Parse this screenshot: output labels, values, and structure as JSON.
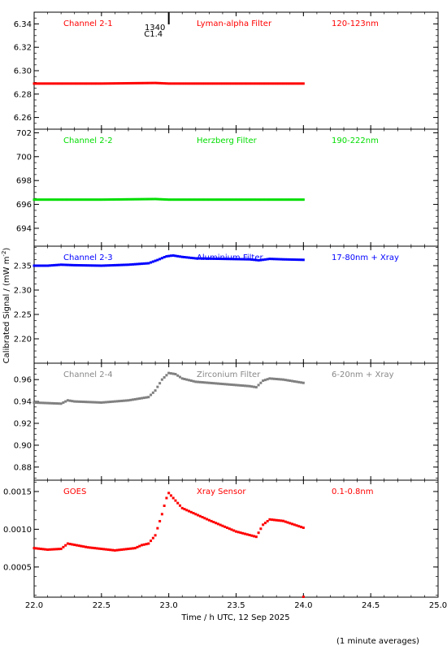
{
  "chart_data": {
    "type": "scatter",
    "xlabel": "Time / h UTC, 12 Sep 2025",
    "ylabel": "Calibrated Signal / (mW m",
    "ylabel_sup": "-2",
    "ylabel_close": ")",
    "footnote": "(1 minute averages)",
    "x_range": [
      22.0,
      25.0
    ],
    "x_ticks": [
      "22.0",
      "22.5",
      "23.0",
      "23.5",
      "24.0",
      "24.5",
      "25.0"
    ],
    "x_tick_values": [
      22.0,
      22.5,
      23.0,
      23.5,
      24.0,
      24.5,
      25.0
    ],
    "flare_marker": {
      "x": 23.0,
      "time": "1340",
      "class": "C1.4"
    },
    "panels": [
      {
        "channel": "Channel 2-1",
        "filter": "Lyman-alpha Filter",
        "band": "120-123nm",
        "color": "#ff0000",
        "ylim": [
          6.25,
          6.35
        ],
        "y_ticks": [
          "6.26",
          "6.28",
          "6.30",
          "6.32",
          "6.34"
        ],
        "y_tick_values": [
          6.26,
          6.28,
          6.3,
          6.32,
          6.34
        ],
        "points": [
          [
            22.0,
            6.289
          ],
          [
            22.5,
            6.289
          ],
          [
            22.9,
            6.2895
          ],
          [
            23.0,
            6.289
          ],
          [
            23.5,
            6.289
          ],
          [
            24.0,
            6.289
          ]
        ]
      },
      {
        "channel": "Channel 2-2",
        "filter": "Herzberg Filter",
        "band": "190-222nm",
        "color": "#00dd00",
        "ylim": [
          692.5,
          702.3
        ],
        "y_ticks": [
          "694",
          "696",
          "698",
          "700",
          "702"
        ],
        "y_tick_values": [
          694,
          696,
          698,
          700,
          702
        ],
        "points": [
          [
            22.0,
            696.4
          ],
          [
            22.5,
            696.4
          ],
          [
            22.9,
            696.45
          ],
          [
            23.0,
            696.4
          ],
          [
            23.5,
            696.4
          ],
          [
            24.0,
            696.4
          ]
        ]
      },
      {
        "channel": "Channel 2-3",
        "filter": "Aluminium Filter",
        "band": "17-80nm + Xray",
        "color": "#0000ff",
        "ylim": [
          2.15,
          2.39
        ],
        "y_ticks": [
          "2.20",
          "2.25",
          "2.30",
          "2.35"
        ],
        "y_tick_values": [
          2.2,
          2.25,
          2.3,
          2.35
        ],
        "points": [
          [
            22.0,
            2.35
          ],
          [
            22.1,
            2.35
          ],
          [
            22.2,
            2.352
          ],
          [
            22.3,
            2.351
          ],
          [
            22.5,
            2.35
          ],
          [
            22.7,
            2.352
          ],
          [
            22.85,
            2.355
          ],
          [
            22.92,
            2.362
          ],
          [
            22.98,
            2.369
          ],
          [
            23.03,
            2.371
          ],
          [
            23.1,
            2.368
          ],
          [
            23.2,
            2.365
          ],
          [
            23.4,
            2.364
          ],
          [
            23.6,
            2.363
          ],
          [
            23.67,
            2.361
          ],
          [
            23.75,
            2.364
          ],
          [
            23.85,
            2.363
          ],
          [
            24.0,
            2.362
          ]
        ]
      },
      {
        "channel": "Channel 2-4",
        "filter": "Zirconium Filter",
        "band": "6-20nm + Xray",
        "color": "#808080",
        "ylim": [
          0.868,
          0.975
        ],
        "y_ticks": [
          "0.88",
          "0.90",
          "0.92",
          "0.94",
          "0.96"
        ],
        "y_tick_values": [
          0.88,
          0.9,
          0.92,
          0.94,
          0.96
        ],
        "points": [
          [
            22.0,
            0.939
          ],
          [
            22.2,
            0.938
          ],
          [
            22.25,
            0.941
          ],
          [
            22.3,
            0.94
          ],
          [
            22.5,
            0.939
          ],
          [
            22.7,
            0.941
          ],
          [
            22.85,
            0.944
          ],
          [
            22.9,
            0.95
          ],
          [
            22.95,
            0.96
          ],
          [
            23.0,
            0.966
          ],
          [
            23.05,
            0.965
          ],
          [
            23.1,
            0.961
          ],
          [
            23.2,
            0.958
          ],
          [
            23.4,
            0.956
          ],
          [
            23.6,
            0.954
          ],
          [
            23.65,
            0.953
          ],
          [
            23.7,
            0.959
          ],
          [
            23.75,
            0.961
          ],
          [
            23.85,
            0.96
          ],
          [
            24.0,
            0.957
          ]
        ]
      },
      {
        "channel": "GOES",
        "filter": "Xray Sensor",
        "band": "0.1-0.8nm",
        "color": "#ff0000",
        "ylim": [
          0.0001,
          0.00165
        ],
        "y_ticks": [
          "0.0005",
          "0.0010",
          "0.0015"
        ],
        "y_tick_values": [
          0.0005,
          0.001,
          0.0015
        ],
        "points": [
          [
            22.0,
            0.00075
          ],
          [
            22.1,
            0.00073
          ],
          [
            22.2,
            0.00074
          ],
          [
            22.25,
            0.00081
          ],
          [
            22.4,
            0.00076
          ],
          [
            22.6,
            0.00072
          ],
          [
            22.75,
            0.00075
          ],
          [
            22.8,
            0.00079
          ],
          [
            22.85,
            0.00081
          ],
          [
            22.9,
            0.00092
          ],
          [
            22.95,
            0.0012
          ],
          [
            22.98,
            0.0014
          ],
          [
            23.0,
            0.00148
          ],
          [
            23.05,
            0.00138
          ],
          [
            23.1,
            0.00128
          ],
          [
            23.3,
            0.00112
          ],
          [
            23.5,
            0.00097
          ],
          [
            23.65,
            0.0009
          ],
          [
            23.7,
            0.00106
          ],
          [
            23.75,
            0.00113
          ],
          [
            23.85,
            0.00111
          ],
          [
            24.0,
            0.00102
          ]
        ]
      }
    ]
  }
}
